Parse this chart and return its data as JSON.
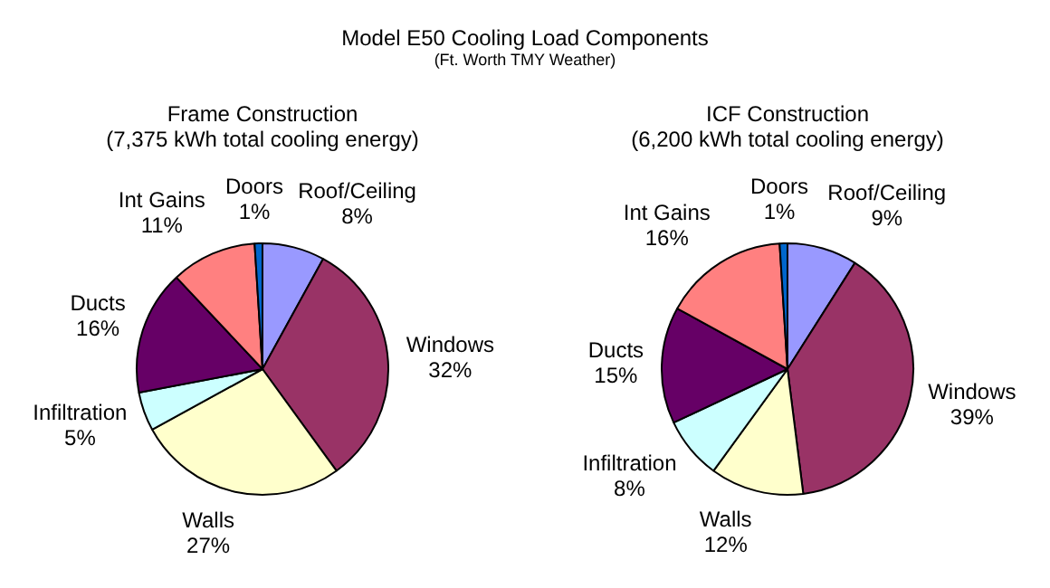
{
  "chart_data": [
    {
      "type": "other",
      "title": "Model E50 Cooling Load Components",
      "subtitle": "(Ft. Worth TMY Weather)"
    },
    {
      "type": "pie",
      "title": "Frame Construction",
      "subtitle": "(7,375 kWh total cooling energy)",
      "categories": [
        "Roof/Ceiling",
        "Windows",
        "Walls",
        "Infiltration",
        "Ducts",
        "Int Gains",
        "Doors"
      ],
      "values": [
        8,
        32,
        27,
        5,
        16,
        11,
        1
      ],
      "value_labels": [
        "8%",
        "32%",
        "27%",
        "5%",
        "16%",
        "11%",
        "1%"
      ],
      "colors": [
        "#9999ff",
        "#993366",
        "#ffffcc",
        "#ccffff",
        "#660066",
        "#ff8080",
        "#0066cc"
      ]
    },
    {
      "type": "pie",
      "title": "ICF Construction",
      "subtitle": "(6,200 kWh total cooling energy)",
      "categories": [
        "Roof/Ceiling",
        "Windows",
        "Walls",
        "Infiltration",
        "Ducts",
        "Int Gains",
        "Doors"
      ],
      "values": [
        9,
        39,
        12,
        8,
        15,
        16,
        1
      ],
      "value_labels": [
        "9%",
        "39%",
        "12%",
        "8%",
        "15%",
        "16%",
        "1%"
      ],
      "colors": [
        "#9999ff",
        "#993366",
        "#ffffcc",
        "#ccffff",
        "#660066",
        "#ff8080",
        "#0066cc"
      ]
    }
  ]
}
